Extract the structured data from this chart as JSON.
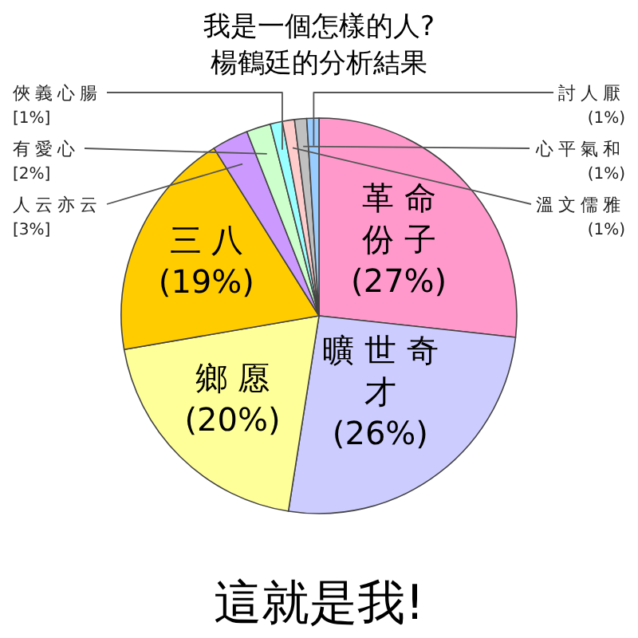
{
  "chart_data": {
    "type": "pie",
    "title": "我是一個怎樣的人?",
    "subtitle": "楊鶴廷的分析結果",
    "categories": [
      "革命份子",
      "曠世奇才",
      "鄉愿",
      "三八",
      "人云亦云",
      "有愛心",
      "俠義心腸",
      "溫文儒雅",
      "心平氣和",
      "討人厭"
    ],
    "values": [
      27,
      26,
      20,
      19,
      3,
      2,
      1,
      1,
      1,
      1
    ],
    "colors": [
      "#ff99cc",
      "#ccccff",
      "#ffff99",
      "#ffcc00",
      "#cc99ff",
      "#ccffcc",
      "#99ffff",
      "#ffcccc",
      "#c0c0c0",
      "#99ccff"
    ],
    "value_labels": [
      "(27%)",
      "(26%)",
      "(20%)",
      "(19%)",
      "[3%]",
      "[2%]",
      "[1%]",
      "(1%)",
      "(1%)",
      "(1%)"
    ],
    "annotations": [
      "這就是我!"
    ]
  }
}
